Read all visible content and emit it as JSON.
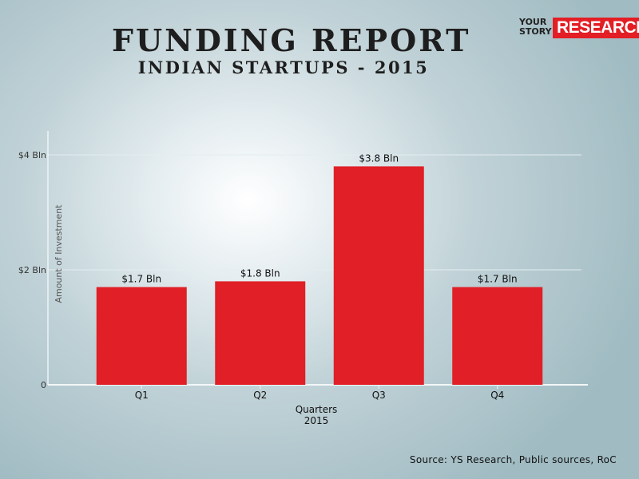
{
  "header": {
    "title": "FUNDING REPORT",
    "subtitle": "INDIAN STARTUPS - 2015"
  },
  "logo": {
    "line1": "YOUR",
    "line2": "STORY",
    "brand": "RESEARCH",
    "brand_color": "#e31e24"
  },
  "source": "Source: YS Research, Public sources, RoC",
  "chart_data": {
    "type": "bar",
    "categories": [
      "Q1",
      "Q2",
      "Q3",
      "Q4"
    ],
    "values": [
      1.7,
      1.8,
      3.8,
      1.7
    ],
    "data_labels": [
      "$1.7 Bln",
      "$1.8 Bln",
      "$3.8 Bln",
      "$1.7 Bln"
    ],
    "ylabel": "Amount of Investment",
    "xlabel": "Quarters",
    "xlabel_sub": "2015",
    "yticks": [
      0,
      2,
      4
    ],
    "ytick_labels": [
      "0",
      "$2 Bln",
      "$4 Bln"
    ],
    "ylim": [
      0,
      4
    ],
    "grid": true,
    "bar_color": "#e01f26"
  }
}
